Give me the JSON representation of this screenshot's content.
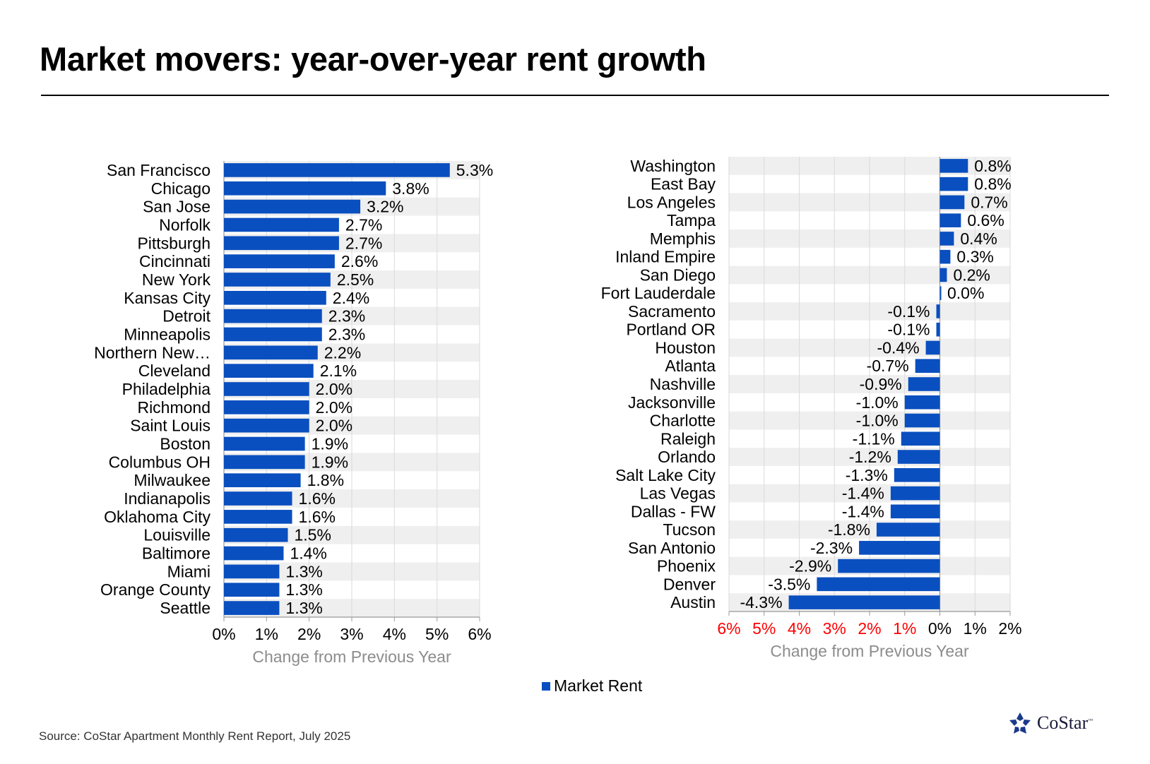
{
  "title": "Market movers: year-over-year rent growth",
  "source": "Source: CoStar Apartment Monthly Rent Report, July 2025",
  "legend": {
    "label": "Market Rent",
    "color": "#0A4FBF"
  },
  "logo": {
    "text": "CoStar",
    "tm": "™",
    "icon": "costar-star-icon"
  },
  "colors": {
    "bar": "#0A4FBF",
    "band": "#EFEFEF",
    "grid": "#DADADA",
    "negative_tick": "#FF0000",
    "axis_title": "#8C8C8C"
  },
  "chart_data": [
    {
      "type": "bar",
      "orientation": "horizontal",
      "xlabel": "Change from Previous Year",
      "xlim": [
        0,
        6
      ],
      "tick_labels": [
        "0%",
        "1%",
        "2%",
        "3%",
        "4%",
        "5%",
        "6%"
      ],
      "categories": [
        "San Francisco",
        "Chicago",
        "San Jose",
        "Norfolk",
        "Pittsburgh",
        "Cincinnati",
        "New York",
        "Kansas City",
        "Detroit",
        "Minneapolis",
        "Northern New…",
        "Cleveland",
        "Philadelphia",
        "Richmond",
        "Saint Louis",
        "Boston",
        "Columbus OH",
        "Milwaukee",
        "Indianapolis",
        "Oklahoma City",
        "Louisville",
        "Baltimore",
        "Miami",
        "Orange County",
        "Seattle"
      ],
      "values": [
        5.3,
        3.8,
        3.2,
        2.7,
        2.7,
        2.6,
        2.5,
        2.4,
        2.3,
        2.3,
        2.2,
        2.1,
        2.0,
        2.0,
        2.0,
        1.9,
        1.9,
        1.8,
        1.6,
        1.6,
        1.5,
        1.4,
        1.3,
        1.3,
        1.3
      ],
      "value_labels": [
        "5.3%",
        "3.8%",
        "3.2%",
        "2.7%",
        "2.7%",
        "2.6%",
        "2.5%",
        "2.4%",
        "2.3%",
        "2.3%",
        "2.2%",
        "2.1%",
        "2.0%",
        "2.0%",
        "2.0%",
        "1.9%",
        "1.9%",
        "1.8%",
        "1.6%",
        "1.6%",
        "1.5%",
        "1.4%",
        "1.3%",
        "1.3%",
        "1.3%"
      ],
      "series_name": "Market Rent"
    },
    {
      "type": "bar",
      "orientation": "horizontal",
      "xlabel": "Change from Previous Year",
      "xlim": [
        -6,
        2
      ],
      "tick_labels": [
        "6%",
        "5%",
        "4%",
        "3%",
        "2%",
        "1%",
        "0%",
        "1%",
        "2%"
      ],
      "categories": [
        "Washington",
        "East Bay",
        "Los Angeles",
        "Tampa",
        "Memphis",
        "Inland Empire",
        "San Diego",
        "Fort Lauderdale",
        "Sacramento",
        "Portland OR",
        "Houston",
        "Atlanta",
        "Nashville",
        "Jacksonville",
        "Charlotte",
        "Raleigh",
        "Orlando",
        "Salt Lake City",
        "Las Vegas",
        "Dallas - FW",
        "Tucson",
        "San Antonio",
        "Phoenix",
        "Denver",
        "Austin"
      ],
      "values": [
        0.8,
        0.8,
        0.7,
        0.6,
        0.4,
        0.3,
        0.2,
        0.03,
        -0.1,
        -0.1,
        -0.4,
        -0.7,
        -0.9,
        -1.0,
        -1.0,
        -1.1,
        -1.2,
        -1.3,
        -1.4,
        -1.4,
        -1.8,
        -2.3,
        -2.9,
        -3.5,
        -4.3
      ],
      "value_labels": [
        "0.8%",
        "0.8%",
        "0.7%",
        "0.6%",
        "0.4%",
        "0.3%",
        "0.2%",
        "0.0%",
        "-0.1%",
        "-0.1%",
        "-0.4%",
        "-0.7%",
        "-0.9%",
        "-1.0%",
        "-1.0%",
        "-1.1%",
        "-1.2%",
        "-1.3%",
        "-1.4%",
        "-1.4%",
        "-1.8%",
        "-2.3%",
        "-2.9%",
        "-3.5%",
        "-4.3%"
      ],
      "series_name": "Market Rent"
    }
  ]
}
